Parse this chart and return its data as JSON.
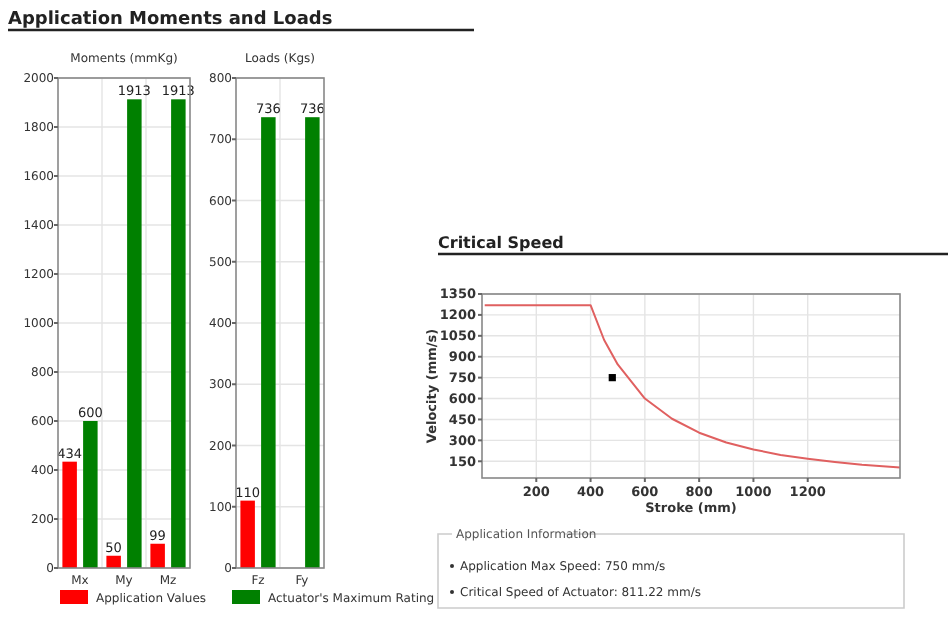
{
  "chart_data": [
    {
      "type": "bar",
      "title": "Application Moments and Loads",
      "subtitle": "Moments (mmKg)",
      "categories": [
        "Mx",
        "My",
        "Mz"
      ],
      "series": [
        {
          "name": "Application Values",
          "color": "#ff0000",
          "values": [
            434,
            50,
            99
          ]
        },
        {
          "name": "Actuator's Maximum Rating",
          "color": "#008000",
          "values": [
            600,
            1913,
            1913
          ]
        }
      ],
      "ylim": [
        0,
        2000
      ],
      "yticks": [
        0,
        200,
        400,
        600,
        800,
        1000,
        1200,
        1400,
        1600,
        1800,
        2000
      ],
      "grid": true,
      "data_labels": true,
      "legend": "bottom"
    },
    {
      "type": "bar",
      "title": "Loads (Kgs)",
      "categories": [
        "Fz",
        "Fy"
      ],
      "series": [
        {
          "color": "#ff0000",
          "values": [
            110,
            null
          ]
        },
        {
          "color": "#008000",
          "values": [
            736,
            736
          ]
        }
      ],
      "ylim": [
        0,
        800
      ],
      "yticks": [
        0,
        100,
        200,
        300,
        400,
        500,
        600,
        700,
        800
      ],
      "grid": true,
      "data_labels": true
    },
    {
      "type": "line",
      "title": "Critical Speed",
      "xlabel": "Stroke (mm)",
      "ylabel": "Velocity (mm/s)",
      "series": [
        {
          "type": "line",
          "color": "#e06060",
          "x": [
            10,
            100,
            200,
            300,
            400,
            450,
            500,
            600,
            700,
            800,
            900,
            1000,
            1100,
            1200,
            1300,
            1400,
            1540
          ],
          "values": [
            1270,
            1270,
            1270,
            1270,
            1270,
            1020,
            845,
            600,
            455,
            355,
            285,
            235,
            195,
            168,
            145,
            125,
            106
          ]
        },
        {
          "type": "scatter",
          "color": "#000000",
          "marker": "square",
          "x": [
            480
          ],
          "values": [
            750
          ]
        }
      ],
      "xlim": [
        0,
        1540
      ],
      "xticks": [
        200,
        400,
        600,
        800,
        1000,
        1200
      ],
      "ylim": [
        30,
        1350
      ],
      "yticks": [
        150,
        300,
        450,
        600,
        750,
        900,
        1050,
        1200,
        1350
      ],
      "grid": true,
      "annotations": [
        "Application Information",
        "Application Max Speed: 750 mm/s",
        "Critical Speed of Actuator: 811.22 mm/s"
      ]
    }
  ]
}
